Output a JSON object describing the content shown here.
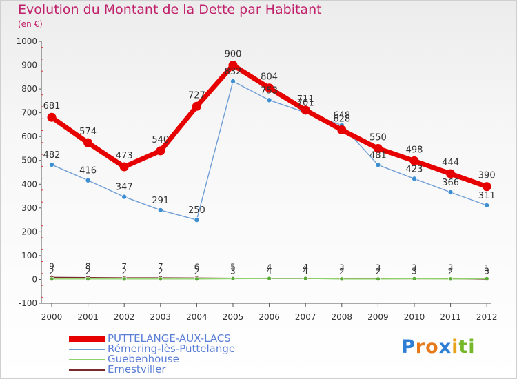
{
  "header": {
    "title": "Evolution du Montant de la Dette par Habitant",
    "subtitle": "(en €)"
  },
  "logo": {
    "letters": [
      {
        "ch": "P",
        "color": "#2f7fd6"
      },
      {
        "ch": "r",
        "color": "#e8791a"
      },
      {
        "ch": "o",
        "color": "#e8791a"
      },
      {
        "ch": "x",
        "color": "#2f7fd6"
      },
      {
        "ch": "i",
        "color": "#e8a21a"
      },
      {
        "ch": "t",
        "color": "#76b82a"
      },
      {
        "ch": "i",
        "color": "#76b82a"
      }
    ]
  },
  "chart_data": {
    "type": "line",
    "x": [
      "2000",
      "2001",
      "2002",
      "2003",
      "2004",
      "2005",
      "2006",
      "2007",
      "2008",
      "2009",
      "2010",
      "2011",
      "2012"
    ],
    "ylim": [
      -100,
      1000
    ],
    "yticks": [
      "-100",
      "0",
      "100",
      "200",
      "300",
      "400",
      "500",
      "600",
      "700",
      "800",
      "900",
      "1000"
    ],
    "grid": false,
    "legend_position": "bottom-left",
    "series": [
      {
        "name": "PUTTELANGE-AUX-LACS",
        "color": "#e60000",
        "marker_color": "#e60000",
        "values": [
          681,
          574,
          473,
          540,
          727,
          900,
          804,
          711,
          628,
          550,
          498,
          444,
          390
        ],
        "labels": [
          "681",
          "574",
          "473",
          "540",
          "727",
          "900",
          "804",
          "711",
          "628",
          "550",
          "498",
          "444",
          "390"
        ]
      },
      {
        "name": "Rémering-lès-Puttelange",
        "color": "#6f9ed6",
        "marker_color": "#3d8fd1",
        "values": [
          482,
          416,
          347,
          291,
          250,
          832,
          753,
          701,
          648,
          481,
          423,
          366,
          311
        ],
        "labels": [
          "482",
          "416",
          "347",
          "291",
          "250",
          "832",
          "753",
          "701",
          "648",
          "481",
          "423",
          "366",
          "311"
        ]
      },
      {
        "name": "Guebenhouse",
        "color": "#8fd16a",
        "marker_color": "#5caa3c",
        "values": [
          2,
          2,
          2,
          2,
          2,
          3,
          4,
          4,
          2,
          2,
          3,
          2,
          3
        ],
        "labels": [
          "2",
          "2",
          "2",
          "2",
          "2",
          "3",
          "4",
          "4",
          "2",
          "2",
          "3",
          "2",
          "3"
        ]
      },
      {
        "name": "Ernestviller",
        "color": "#7a2a2a",
        "marker_color": "#6b1d1d",
        "values": [
          9,
          8,
          7,
          7,
          6,
          5,
          4,
          4,
          3,
          3,
          3,
          3,
          1
        ],
        "labels": [
          "9",
          "8",
          "7",
          "7",
          "6",
          "5",
          "4",
          "4",
          "3",
          "3",
          "3",
          "3",
          "1"
        ]
      }
    ]
  }
}
